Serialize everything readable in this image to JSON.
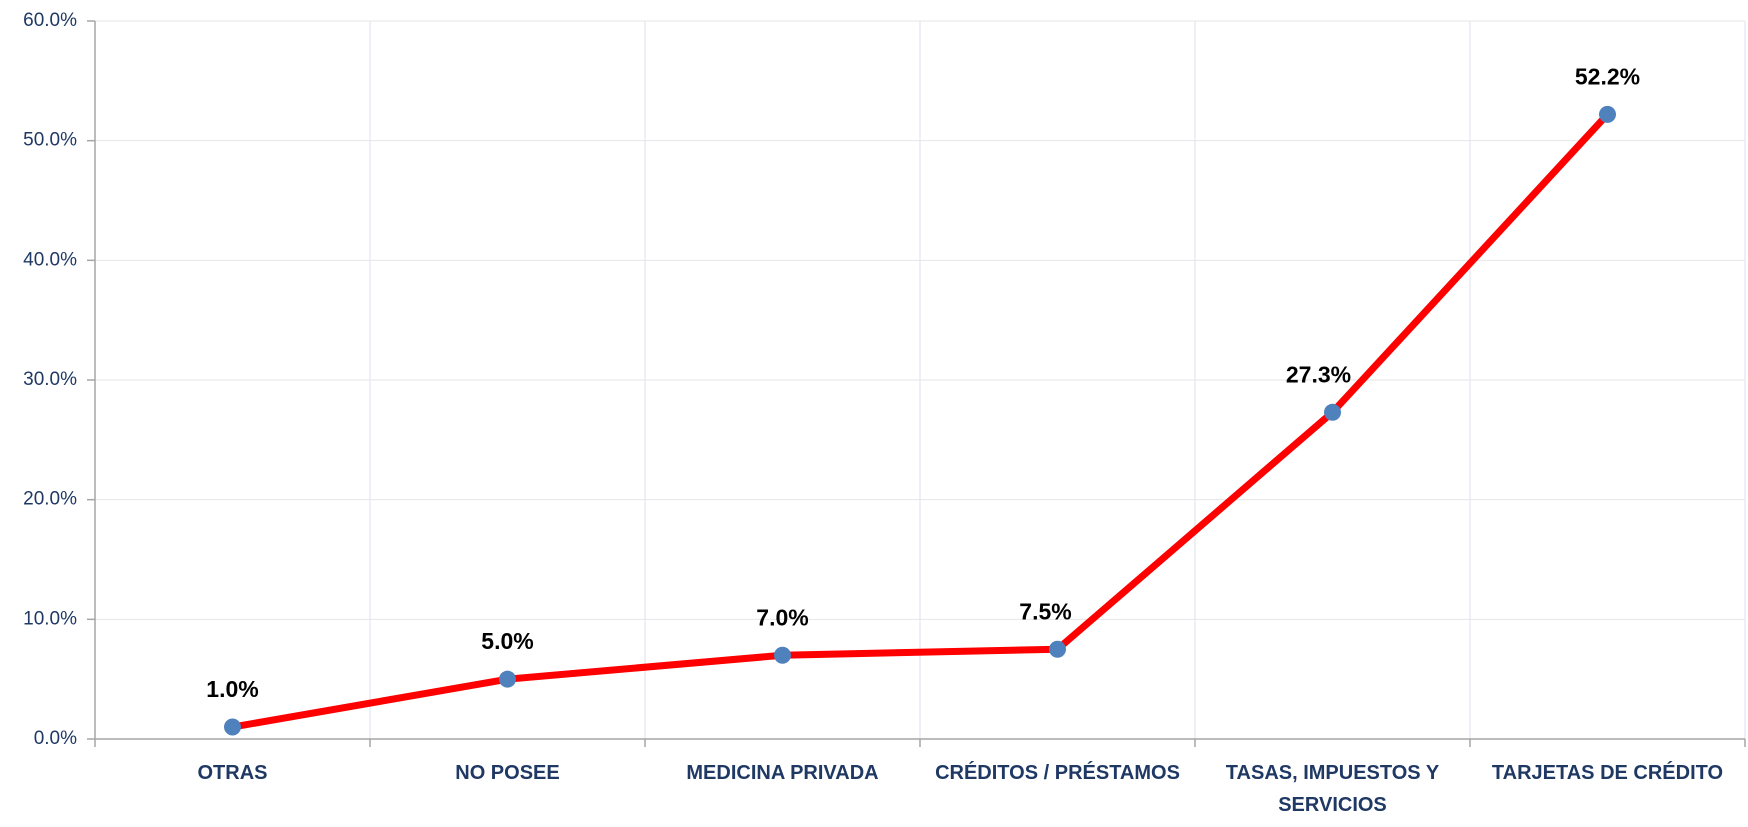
{
  "chart_data": {
    "type": "line",
    "categories": [
      "OTRAS",
      "NO POSEE",
      "MEDICINA PRIVADA",
      "CRÉDITOS / PRÉSTAMOS",
      "TASAS, IMPUESTOS Y SERVICIOS",
      "TARJETAS DE CRÉDITO"
    ],
    "series": [
      {
        "color": "#ff0000",
        "marker_color": "#4f81bd",
        "values": [
          1.0,
          5.0,
          7.0,
          7.5,
          27.3,
          52.2
        ],
        "value_labels": [
          "1.0%",
          "5.0%",
          "7.0%",
          "7.5%",
          "27.3%",
          "52.2%"
        ]
      }
    ],
    "ylim": [
      0,
      60
    ],
    "yticks": [
      {
        "value": 0,
        "label": "0.0%"
      },
      {
        "value": 10,
        "label": "10.0%"
      },
      {
        "value": 20,
        "label": "20.0%"
      },
      {
        "value": 30,
        "label": "30.0%"
      },
      {
        "value": 40,
        "label": "40.0%"
      },
      {
        "value": 50,
        "label": "50.0%"
      },
      {
        "value": 60,
        "label": "60.0%"
      }
    ],
    "grid": true
  }
}
